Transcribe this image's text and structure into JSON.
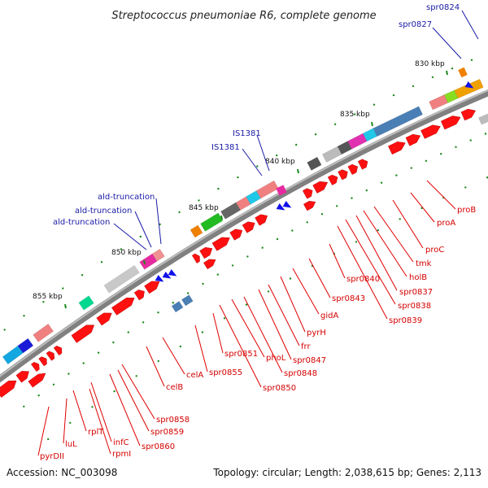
{
  "title": "Streptococcus pneumoniae R6, complete genome",
  "footer": {
    "accession": "Accession: NC_003098",
    "topology": "Topology: circular; Length: 2,038,615 bp; Genes: 2,113"
  },
  "ticks": [
    "830 kbp",
    "835 kbp",
    "840 kbp",
    "845 kbp",
    "850 kbp",
    "855 kbp"
  ],
  "blue_labels": [
    "spr0824",
    "spr0827",
    "IS1381",
    "IS1381",
    "ald-truncation",
    "ald-truncation",
    "ald-truncation"
  ],
  "red_labels": [
    "proB",
    "proA",
    "proC",
    "tmk",
    "holB",
    "spr0837",
    "spr0838",
    "spr0839",
    "spr0840",
    "spr0843",
    "gidA",
    "pyrH",
    "frr",
    "spr0847",
    "spr0848",
    "phoL",
    "spr0850",
    "spr0851",
    "spr0855",
    "celA",
    "celB",
    "spr0858",
    "spr0859",
    "spr0860",
    "infC",
    "rpmI",
    "rplT",
    "luL",
    "pyrDII"
  ],
  "colors": {
    "backbone": "#777777",
    "gene_forward": "#ff1010",
    "gene_label": "#d40000",
    "mobile_element_label": "#1a1aa6",
    "feature_blue": "#1010e8",
    "tick_mark": "#1f8a1f"
  }
}
